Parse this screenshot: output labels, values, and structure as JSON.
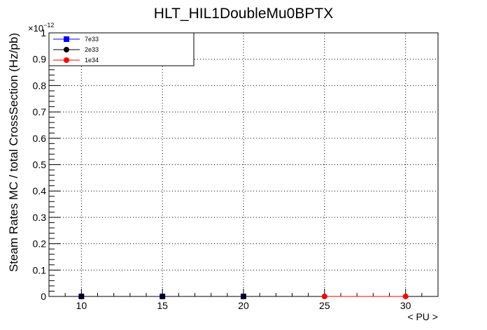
{
  "chart_data": {
    "type": "line",
    "title": "HLT_HIL1DoubleMu0BPTX",
    "xlabel": "< PU >",
    "ylabel": "Steam Rates MC / total CrossSection (Hz/pb)",
    "y_exponent_label": "×10",
    "y_exponent_power": "−12",
    "xlim": [
      8,
      32
    ],
    "ylim": [
      0,
      1
    ],
    "x_ticks": [
      10,
      15,
      20,
      25,
      30
    ],
    "x_tick_labels": [
      "10",
      "15",
      "20",
      "25",
      "30"
    ],
    "y_ticks": [
      0,
      0.1,
      0.2,
      0.3,
      0.4,
      0.5,
      0.6,
      0.7,
      0.8,
      0.9,
      1
    ],
    "y_tick_labels": [
      "0",
      "0.1",
      "0.2",
      "0.3",
      "0.4",
      "0.5",
      "0.6",
      "0.7",
      "0.8",
      "0.9",
      "1"
    ],
    "grid": true,
    "legend_position": "top-left",
    "series": [
      {
        "name": "7e33",
        "color": "#0000ff",
        "marker": "square",
        "x": [
          10,
          15,
          20
        ],
        "y": [
          0,
          0,
          0
        ]
      },
      {
        "name": "2e33",
        "color": "#000000",
        "marker": "circle",
        "x": [
          10,
          15,
          20
        ],
        "y": [
          0,
          0,
          0
        ]
      },
      {
        "name": "1e34",
        "color": "#ff0000",
        "marker": "circle",
        "x": [
          25,
          30
        ],
        "y": [
          0,
          0
        ]
      }
    ]
  }
}
